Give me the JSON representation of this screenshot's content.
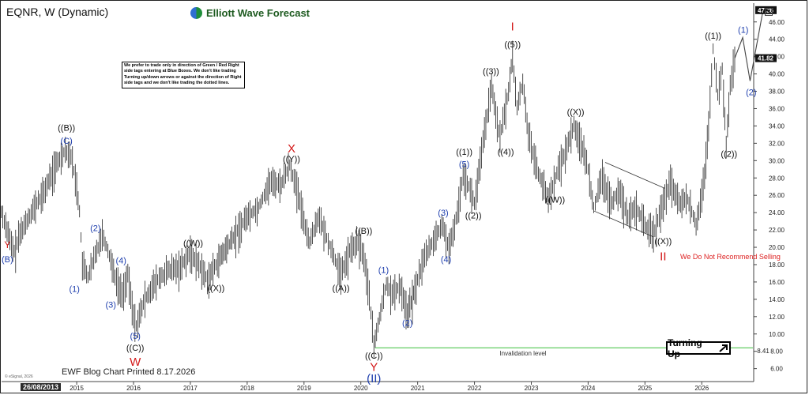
{
  "header": {
    "title": "EQNR, W (Dynamic)",
    "brand": "Elliott Wave Forecast"
  },
  "note": "We prefer to trade only in direction of Green / Red Right side tags entering at Blue Boxes. We don't like trading Turning up/down arrows or against the direction of Right side tags and we don't like trading the dotted lines.",
  "footer": {
    "printed": "EWF Blog Chart Printed 8.17.2026",
    "copyright": "© eSignal, 2026",
    "first_date": "26/08/2013"
  },
  "warning": "We Do Not Recommend Selling",
  "turning_up": "Turning Up",
  "colors": {
    "price": "#222222",
    "wave_blue": "#1f3fae",
    "wave_black": "#111111",
    "wave_red": "#d31919",
    "invalidation": "#3cbf3c",
    "channel": "#333333",
    "price_tag_bg": "#111111",
    "price_tag_fg": "#ffffff"
  },
  "chart_data": {
    "type": "line",
    "x_axis": {
      "range": [
        2013.65,
        2026.9
      ],
      "ticks": [
        "2015",
        "2016",
        "2017",
        "2018",
        "2019",
        "2020",
        "2021",
        "2022",
        "2023",
        "2024",
        "2025",
        "2026"
      ],
      "tick_values": [
        2015,
        2016,
        2017,
        2018,
        2019,
        2020,
        2021,
        2022,
        2023,
        2024,
        2025,
        2026
      ]
    },
    "y_axis": {
      "range": [
        4.6,
        47.8
      ],
      "side": "right",
      "tick_values": [
        6,
        8,
        10,
        12,
        14,
        16,
        18,
        20,
        22,
        24,
        26,
        28,
        30,
        32,
        34,
        36,
        38,
        40,
        42,
        44,
        46
      ],
      "ticks": [
        "6.00",
        "8.00",
        "10.00",
        "12.00",
        "14.00",
        "16.00",
        "18.00",
        "20.00",
        "22.00",
        "24.00",
        "26.00",
        "28.00",
        "30.00",
        "32.00",
        "34.00",
        "36.00",
        "38.00",
        "40.00",
        "42.00",
        "44.00",
        "46.00"
      ]
    },
    "price_tags": [
      {
        "value": 47.36,
        "label": "47.36"
      },
      {
        "value": 41.82,
        "label": "41.82"
      }
    ],
    "invalidation": {
      "value": 8.41,
      "from": 2020.25,
      "label": "Invalidation level",
      "value_label": "8.41"
    },
    "series": [
      {
        "points": [
          [
            2013.65,
            24.5
          ],
          [
            2013.75,
            22.5
          ],
          [
            2013.85,
            20.2
          ],
          [
            2013.9,
            19.4
          ],
          [
            2014.0,
            21.5
          ],
          [
            2014.2,
            24.0
          ],
          [
            2014.4,
            26.0
          ],
          [
            2014.6,
            29.0
          ],
          [
            2014.8,
            31.2
          ],
          [
            2014.9,
            30.5
          ],
          [
            2015.0,
            27.0
          ],
          [
            2015.05,
            24.0
          ],
          [
            2015.1,
            18.0
          ],
          [
            2015.2,
            16.5
          ],
          [
            2015.3,
            18.5
          ],
          [
            2015.45,
            21.5
          ],
          [
            2015.6,
            18.5
          ],
          [
            2015.7,
            16.0
          ],
          [
            2015.8,
            14.6
          ],
          [
            2015.9,
            16.8
          ],
          [
            2016.0,
            12.0
          ],
          [
            2016.05,
            10.9
          ],
          [
            2016.2,
            14.0
          ],
          [
            2016.4,
            16.0
          ],
          [
            2016.6,
            17.2
          ],
          [
            2016.8,
            17.6
          ],
          [
            2017.0,
            19.3
          ],
          [
            2017.15,
            18.0
          ],
          [
            2017.3,
            16.2
          ],
          [
            2017.5,
            18.5
          ],
          [
            2017.8,
            21.5
          ],
          [
            2018.0,
            23.5
          ],
          [
            2018.2,
            24.5
          ],
          [
            2018.4,
            27.5
          ],
          [
            2018.6,
            27.2
          ],
          [
            2018.75,
            29.5
          ],
          [
            2018.9,
            26.0
          ],
          [
            2019.0,
            23.0
          ],
          [
            2019.1,
            20.5
          ],
          [
            2019.25,
            23.5
          ],
          [
            2019.4,
            21.0
          ],
          [
            2019.55,
            18.5
          ],
          [
            2019.65,
            16.8
          ],
          [
            2019.8,
            19.5
          ],
          [
            2019.95,
            20.5
          ],
          [
            2020.05,
            19.0
          ],
          [
            2020.15,
            14.5
          ],
          [
            2020.23,
            8.5
          ],
          [
            2020.35,
            12.5
          ],
          [
            2020.45,
            15.8
          ],
          [
            2020.55,
            14.5
          ],
          [
            2020.7,
            15.5
          ],
          [
            2020.82,
            12.3
          ],
          [
            2020.95,
            15.0
          ],
          [
            2021.1,
            18.5
          ],
          [
            2021.3,
            21.0
          ],
          [
            2021.45,
            22.5
          ],
          [
            2021.55,
            19.5
          ],
          [
            2021.7,
            24.0
          ],
          [
            2021.8,
            28.5
          ],
          [
            2021.9,
            27.0
          ],
          [
            2022.0,
            25.0
          ],
          [
            2022.15,
            32.0
          ],
          [
            2022.3,
            38.5
          ],
          [
            2022.45,
            32.5
          ],
          [
            2022.6,
            38.0
          ],
          [
            2022.67,
            42.0
          ],
          [
            2022.75,
            36.0
          ],
          [
            2022.85,
            39.0
          ],
          [
            2022.95,
            33.0
          ],
          [
            2023.1,
            29.0
          ],
          [
            2023.3,
            25.5
          ],
          [
            2023.45,
            28.5
          ],
          [
            2023.6,
            31.0
          ],
          [
            2023.75,
            34.0
          ],
          [
            2023.85,
            32.5
          ],
          [
            2024.0,
            29.0
          ],
          [
            2024.1,
            24.5
          ],
          [
            2024.25,
            28.0
          ],
          [
            2024.4,
            25.0
          ],
          [
            2024.55,
            26.5
          ],
          [
            2024.7,
            23.5
          ],
          [
            2024.85,
            24.5
          ],
          [
            2025.0,
            22.5
          ],
          [
            2025.15,
            21.5
          ],
          [
            2025.3,
            24.5
          ],
          [
            2025.45,
            27.5
          ],
          [
            2025.6,
            25.0
          ],
          [
            2025.75,
            25.5
          ],
          [
            2025.9,
            22.5
          ],
          [
            2026.05,
            28.0
          ],
          [
            2026.12,
            34.0
          ],
          [
            2026.2,
            42.8
          ],
          [
            2026.28,
            37.5
          ],
          [
            2026.36,
            40.5
          ],
          [
            2026.43,
            31.5
          ],
          [
            2026.5,
            38.5
          ],
          [
            2026.58,
            41.8
          ]
        ]
      }
    ],
    "projection": [
      [
        2026.58,
        41.8
      ],
      [
        2026.72,
        44.2
      ],
      [
        2026.85,
        39.2
      ],
      [
        2027.08,
        47.4
      ]
    ],
    "channel": [
      [
        [
          2024.3,
          29.8
        ],
        [
          2025.35,
          26.8
        ]
      ],
      [
        [
          2024.1,
          24.2
        ],
        [
          2025.15,
          21.2
        ]
      ]
    ],
    "labels": [
      {
        "text": "Y",
        "x": 2013.78,
        "y": 20.3,
        "color": "wave_red",
        "size": 12
      },
      {
        "text": "(B)",
        "x": 2013.78,
        "y": 18.6,
        "color": "wave_blue",
        "size": 11
      },
      {
        "text": "((B))",
        "x": 2014.82,
        "y": 33.8,
        "color": "wave_black",
        "size": 11
      },
      {
        "text": "(C)",
        "x": 2014.82,
        "y": 32.3,
        "color": "wave_blue",
        "size": 11
      },
      {
        "text": "(1)",
        "x": 2014.96,
        "y": 15.2,
        "color": "wave_blue",
        "size": 11
      },
      {
        "text": "(2)",
        "x": 2015.33,
        "y": 22.2,
        "color": "wave_blue",
        "size": 11
      },
      {
        "text": "(3)",
        "x": 2015.6,
        "y": 13.4,
        "color": "wave_blue",
        "size": 11
      },
      {
        "text": "(4)",
        "x": 2015.78,
        "y": 18.5,
        "color": "wave_blue",
        "size": 11
      },
      {
        "text": "(5)",
        "x": 2016.03,
        "y": 9.8,
        "color": "wave_blue",
        "size": 11
      },
      {
        "text": "((C))",
        "x": 2016.03,
        "y": 8.4,
        "color": "wave_black",
        "size": 11
      },
      {
        "text": "W",
        "x": 2016.03,
        "y": 6.8,
        "color": "wave_red",
        "size": 15
      },
      {
        "text": "((W))",
        "x": 2017.05,
        "y": 20.5,
        "color": "wave_black",
        "size": 11
      },
      {
        "text": "((X))",
        "x": 2017.45,
        "y": 15.3,
        "color": "wave_black",
        "size": 11
      },
      {
        "text": "X",
        "x": 2018.78,
        "y": 31.4,
        "color": "wave_red",
        "size": 15
      },
      {
        "text": "((Y))",
        "x": 2018.78,
        "y": 30.2,
        "color": "wave_black",
        "size": 11
      },
      {
        "text": "((A))",
        "x": 2019.65,
        "y": 15.3,
        "color": "wave_black",
        "size": 11
      },
      {
        "text": "((B))",
        "x": 2020.05,
        "y": 21.9,
        "color": "wave_black",
        "size": 11
      },
      {
        "text": "(1)",
        "x": 2020.4,
        "y": 17.4,
        "color": "wave_blue",
        "size": 11
      },
      {
        "text": "((C))",
        "x": 2020.23,
        "y": 7.5,
        "color": "wave_black",
        "size": 11
      },
      {
        "text": "Y",
        "x": 2020.23,
        "y": 6.2,
        "color": "wave_red",
        "size": 15
      },
      {
        "text": "(II)",
        "x": 2020.23,
        "y": 4.9,
        "color": "wave_blue",
        "size": 15
      },
      {
        "text": "(2)",
        "x": 2020.82,
        "y": 11.3,
        "color": "wave_blue",
        "size": 11
      },
      {
        "text": "(3)",
        "x": 2021.45,
        "y": 24.0,
        "color": "wave_blue",
        "size": 11
      },
      {
        "text": "(4)",
        "x": 2021.5,
        "y": 18.6,
        "color": "wave_blue",
        "size": 11
      },
      {
        "text": "(5)",
        "x": 2021.82,
        "y": 29.6,
        "color": "wave_blue",
        "size": 11
      },
      {
        "text": "((1))",
        "x": 2021.82,
        "y": 31.0,
        "color": "wave_black",
        "size": 11
      },
      {
        "text": "((2))",
        "x": 2021.98,
        "y": 23.7,
        "color": "wave_black",
        "size": 11
      },
      {
        "text": "((3))",
        "x": 2022.29,
        "y": 40.3,
        "color": "wave_black",
        "size": 11
      },
      {
        "text": "((4))",
        "x": 2022.55,
        "y": 31.0,
        "color": "wave_black",
        "size": 11
      },
      {
        "text": "((5))",
        "x": 2022.67,
        "y": 43.4,
        "color": "wave_black",
        "size": 11
      },
      {
        "text": "I",
        "x": 2022.67,
        "y": 45.5,
        "color": "wave_red",
        "size": 15
      },
      {
        "text": "((W))",
        "x": 2023.42,
        "y": 25.5,
        "color": "wave_black",
        "size": 11
      },
      {
        "text": "((X))",
        "x": 2023.78,
        "y": 35.6,
        "color": "wave_black",
        "size": 11
      },
      {
        "text": "((X))",
        "x": 2025.32,
        "y": 20.7,
        "color": "wave_black",
        "size": 11
      },
      {
        "text": "II",
        "x": 2025.32,
        "y": 19.0,
        "color": "wave_red",
        "size": 15
      },
      {
        "text": "((1))",
        "x": 2026.2,
        "y": 44.4,
        "color": "wave_black",
        "size": 11
      },
      {
        "text": "((2))",
        "x": 2026.48,
        "y": 30.8,
        "color": "wave_black",
        "size": 11
      },
      {
        "text": "(1)",
        "x": 2026.73,
        "y": 45.1,
        "color": "wave_blue",
        "size": 11
      },
      {
        "text": "(2)",
        "x": 2026.87,
        "y": 37.9,
        "color": "wave_blue",
        "size": 11
      }
    ]
  }
}
